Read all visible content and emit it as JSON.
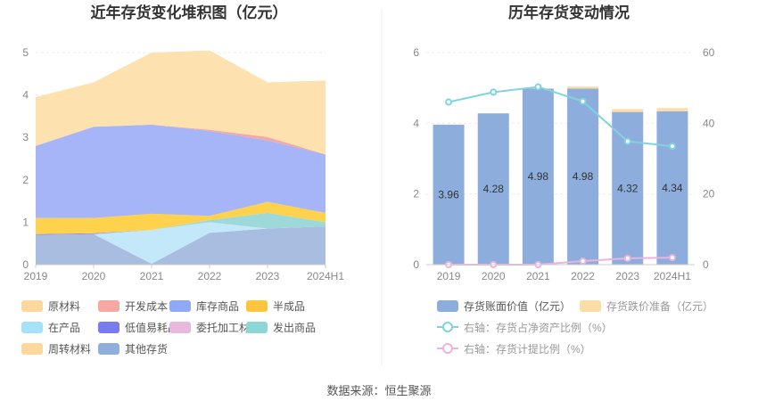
{
  "source_label": "数据来源：恒生聚源",
  "chart_data": [
    {
      "type": "area",
      "title": "近年存货变化堆积图（亿元）",
      "categories": [
        "2019",
        "2020",
        "2021",
        "2022",
        "2023",
        "2024H1"
      ],
      "ylim": [
        0,
        5
      ],
      "yticks": [
        "0",
        "1",
        "2",
        "3",
        "4",
        "5"
      ],
      "series": [
        {
          "name": "其他存货",
          "color": "#A9BDE1",
          "values": [
            0.7,
            0.72,
            0.02,
            0.75,
            0.85,
            0.9
          ]
        },
        {
          "name": "在产品",
          "color": "#C3E8FA",
          "values": [
            0.0,
            0.0,
            0.8,
            0.25,
            0.0,
            0.0
          ]
        },
        {
          "name": "发出商品",
          "color": "#9ED9D9",
          "values": [
            0.0,
            0.0,
            0.0,
            0.05,
            0.37,
            0.1
          ]
        },
        {
          "name": "低值易耗品",
          "color": "#8C8CF2",
          "values": [
            0.02,
            0.02,
            0.0,
            0.0,
            0.0,
            0.0
          ]
        },
        {
          "name": "半成品",
          "color": "#FFD24D",
          "values": [
            0.38,
            0.36,
            0.38,
            0.1,
            0.26,
            0.22
          ]
        },
        {
          "name": "库存商品",
          "color": "#A5B5F7",
          "values": [
            1.7,
            2.15,
            2.1,
            2.0,
            1.45,
            1.38
          ]
        },
        {
          "name": "委托加工材料",
          "color": "#ECC3DE",
          "values": [
            0.0,
            0.0,
            0.0,
            0.0,
            0.0,
            0.0
          ]
        },
        {
          "name": "开发成本",
          "color": "#F7A8A2",
          "values": [
            0.0,
            0.0,
            0.0,
            0.03,
            0.08,
            0.0
          ]
        },
        {
          "name": "原材料",
          "color": "#FDE2B0",
          "values": [
            1.15,
            1.05,
            1.7,
            1.87,
            1.29,
            1.74
          ]
        },
        {
          "name": "周转材料",
          "color": "#FFE0A6",
          "values": [
            0.0,
            0.0,
            0.0,
            0.0,
            0.0,
            0.0
          ]
        }
      ],
      "legend": [
        {
          "name": "原材料",
          "color": "#FDD89C"
        },
        {
          "name": "开发成本",
          "color": "#F7A8A2"
        },
        {
          "name": "库存商品",
          "color": "#8FA8F7"
        },
        {
          "name": "半成品",
          "color": "#FFC53D"
        },
        {
          "name": "在产品",
          "color": "#A6E1FA"
        },
        {
          "name": "低值易耗品",
          "color": "#7B7BF0"
        },
        {
          "name": "委托加工材料",
          "color": "#E8B9DA"
        },
        {
          "name": "发出商品",
          "color": "#8CD6D6"
        },
        {
          "name": "周转材料",
          "color": "#FDD89C"
        },
        {
          "name": "其他存货",
          "color": "#8FAEDB"
        }
      ]
    },
    {
      "type": "bar",
      "title": "历年存货变动情况",
      "categories": [
        "2019",
        "2020",
        "2021",
        "2022",
        "2023",
        "2024H1"
      ],
      "ylim_left": [
        0,
        6
      ],
      "yticks_left": [
        "0",
        "2",
        "4",
        "6"
      ],
      "ylim_right": [
        0,
        60
      ],
      "yticks_right": [
        "0",
        "20",
        "40",
        "60"
      ],
      "series": [
        {
          "name": "存货账面价值（亿元）",
          "color": "#8DAEDD",
          "values": [
            3.96,
            4.28,
            4.98,
            4.98,
            4.32,
            4.34
          ],
          "labels": [
            "3.96",
            "4.28",
            "4.98",
            "4.98",
            "4.32",
            "4.34"
          ]
        },
        {
          "name": "存货跌价准备（亿元）",
          "color": "#FCDDA8",
          "values": [
            0.0,
            0.0,
            0.0,
            0.06,
            0.08,
            0.09
          ]
        },
        {
          "name": "右轴：存货占净资产比例（%）",
          "color": "#7FD3E0",
          "axis": "right",
          "values": [
            46.0,
            48.8,
            50.3,
            46.2,
            34.9,
            33.5
          ]
        },
        {
          "name": "右轴：存货计提比例（%）",
          "color": "#E9B4DE",
          "axis": "right",
          "values": [
            0.0,
            0.0,
            0.0,
            1.0,
            1.8,
            2.0
          ]
        }
      ]
    }
  ]
}
